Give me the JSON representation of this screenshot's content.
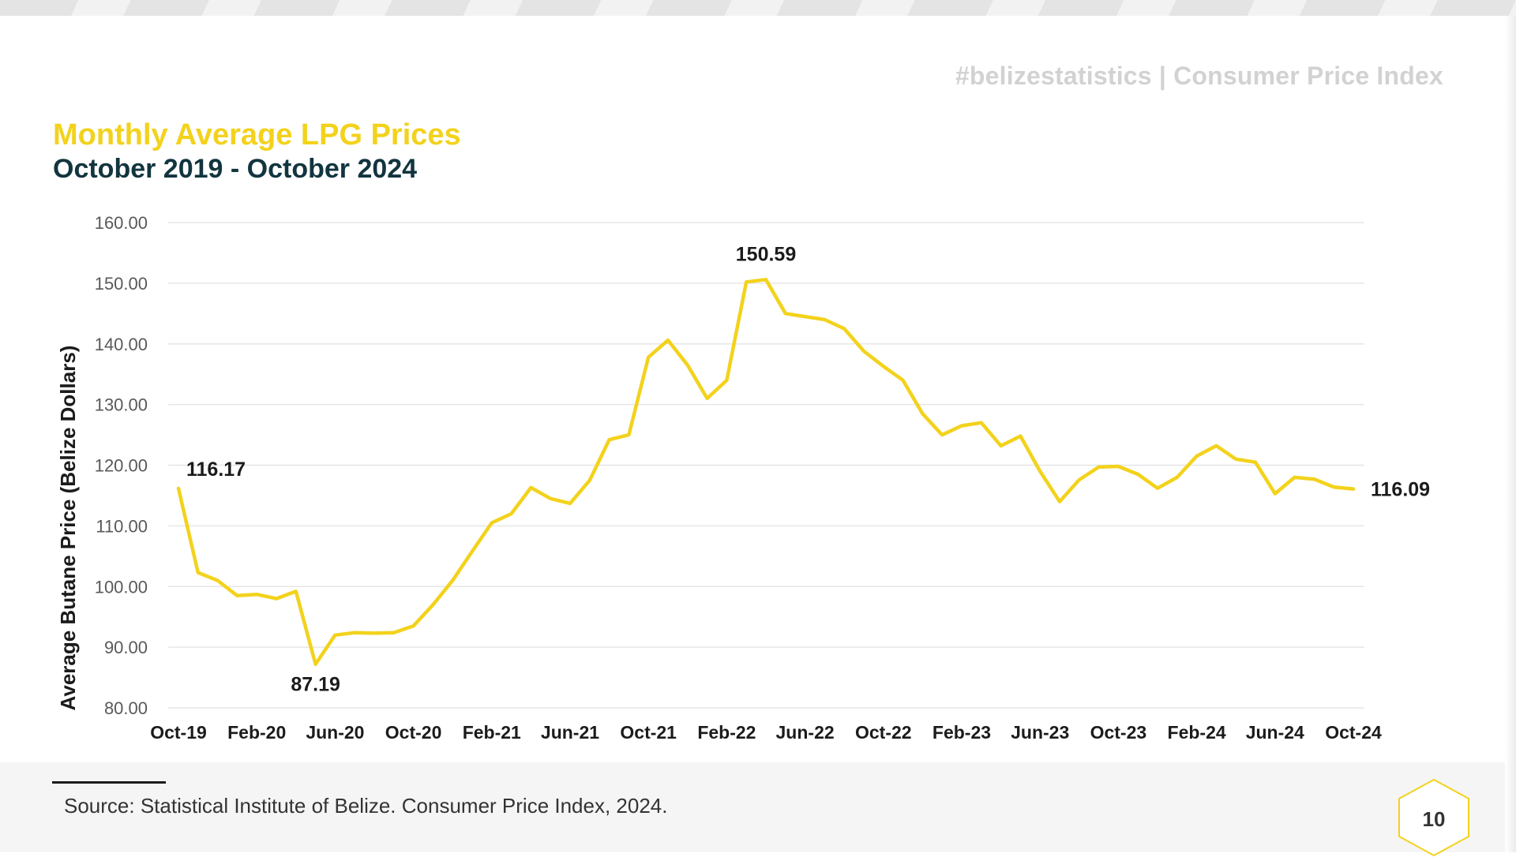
{
  "header": {
    "hashtag": "#belizestatistics | Consumer Price Index"
  },
  "chart_data": {
    "type": "line",
    "title": "Monthly Average LPG Prices",
    "subtitle": "October 2019 - October 2024",
    "ylabel": "Average Butane Price (Belize Dollars)",
    "xlabel": "",
    "ylim": [
      80,
      160
    ],
    "yticks": [
      "80.00",
      "90.00",
      "100.00",
      "110.00",
      "120.00",
      "130.00",
      "140.00",
      "150.00",
      "160.00"
    ],
    "xtick_labels": [
      "Oct-19",
      "Feb-20",
      "Jun-20",
      "Oct-20",
      "Feb-21",
      "Jun-21",
      "Oct-21",
      "Feb-22",
      "Jun-22",
      "Oct-22",
      "Feb-23",
      "Jun-23",
      "Oct-23",
      "Feb-24",
      "Jun-24",
      "Oct-24"
    ],
    "grid": true,
    "legend": "none",
    "line_color": "#f3d21c",
    "series": [
      {
        "values": [
          116.17,
          102.3,
          101.0,
          98.5,
          98.7,
          98.0,
          99.2,
          87.19,
          92.0,
          92.4,
          92.3,
          92.4,
          93.5,
          97.0,
          101.0,
          105.8,
          110.5,
          112.0,
          116.3,
          114.5,
          113.7,
          117.5,
          124.2,
          125.0,
          137.8,
          140.6,
          136.5,
          131.0,
          134.0,
          150.2,
          150.59,
          145.0,
          144.5,
          144.0,
          142.5,
          138.8,
          136.3,
          134.0,
          128.5,
          125.0,
          126.5,
          127.0,
          123.2,
          124.8,
          119.0,
          114.0,
          117.6,
          119.7,
          119.8,
          118.5,
          116.2,
          118.0,
          121.5,
          123.2,
          121.0,
          120.5,
          115.3,
          118.0,
          117.7,
          116.4,
          116.09
        ]
      }
    ],
    "annotations": [
      {
        "index": 0,
        "label": "116.17"
      },
      {
        "index": 7,
        "label": "87.19"
      },
      {
        "index": 30,
        "label": "150.59"
      },
      {
        "index": 60,
        "label": "116.09"
      }
    ]
  },
  "footer": {
    "source": "Source: Statistical Institute of Belize. Consumer Price Index, 2024.",
    "page_number": "10"
  }
}
